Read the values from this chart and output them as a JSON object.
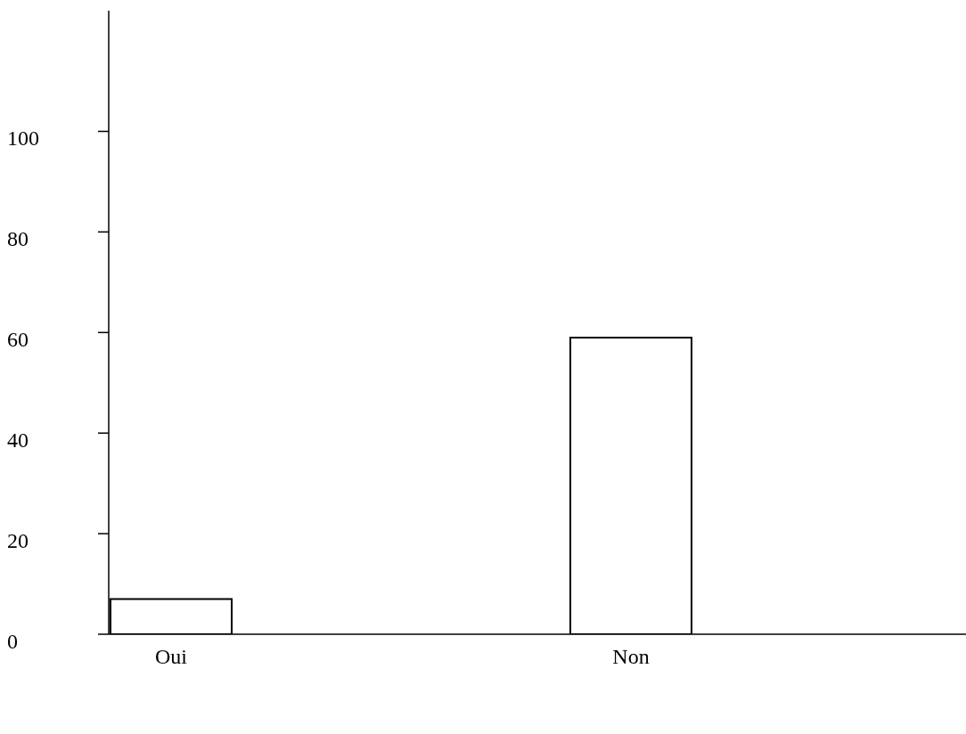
{
  "chart_data": {
    "type": "bar",
    "categories": [
      "Oui",
      "Non"
    ],
    "values": [
      7,
      59
    ],
    "color": "#ffffff",
    "ylim": [
      0,
      124
    ],
    "yticks": [
      0,
      20,
      40,
      60,
      80,
      100
    ],
    "grid": false,
    "legend": false
  }
}
